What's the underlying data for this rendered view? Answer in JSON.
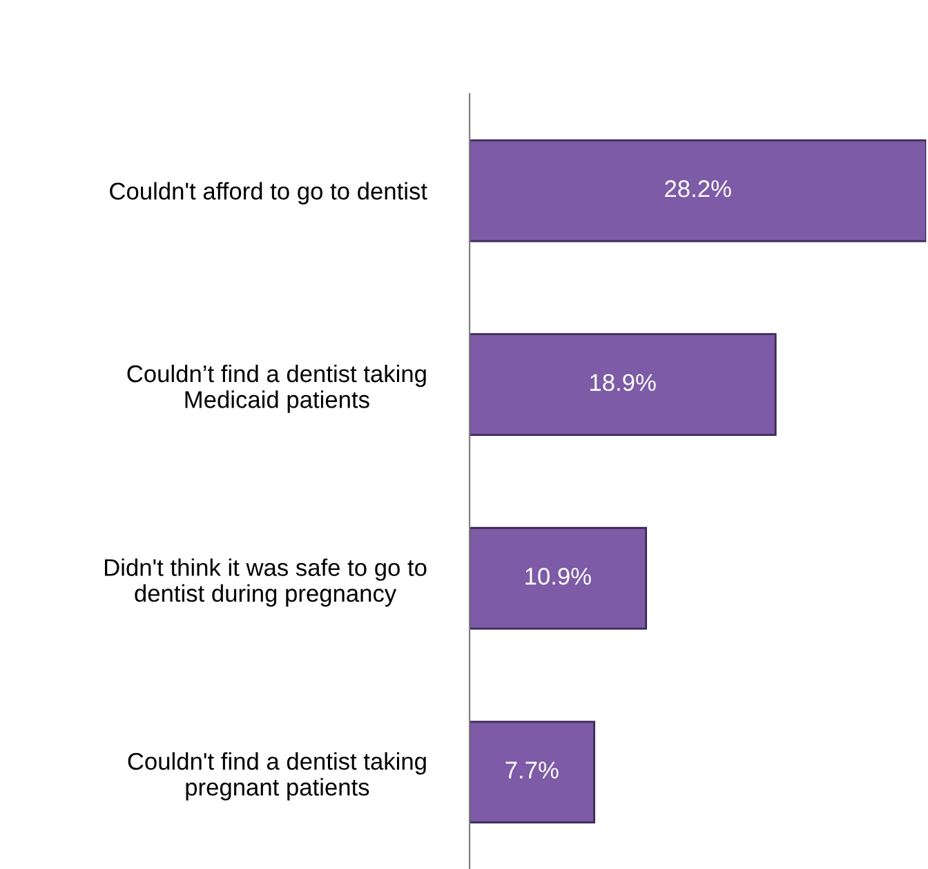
{
  "chart_data": {
    "type": "bar",
    "orientation": "horizontal",
    "categories": [
      "Couldn't afford to go to dentist",
      "Couldn’t find a dentist taking\nMedicaid patients",
      "Didn't think it was safe to go to\ndentist during pregnancy",
      "Couldn't find a dentist taking\npregnant patients"
    ],
    "values": [
      28.2,
      18.9,
      10.9,
      7.7
    ],
    "value_labels": [
      "28.2%",
      "18.9%",
      "10.9%",
      "7.7%"
    ],
    "color": "#7d5ba6",
    "tick_labels": "y",
    "grid": false,
    "legend": false
  }
}
